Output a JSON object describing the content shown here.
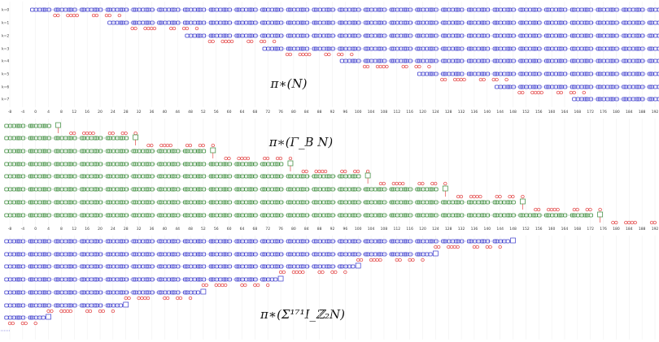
{
  "panels": [
    {
      "label": "π∗(N)",
      "row_labels": [
        "k=0",
        "k=1",
        "k=2",
        "k=3",
        "k=4",
        "k=5",
        "k=6",
        "k=7"
      ]
    },
    {
      "label": "π∗(Γ_B N)"
    },
    {
      "label": "π∗(Σ¹⁷¹I_ℤ₂N)"
    }
  ],
  "axes": [
    {
      "ticks": [
        -8,
        -4,
        0,
        4,
        8,
        12,
        16,
        20,
        24,
        28,
        32,
        36,
        40,
        44,
        48,
        52,
        56,
        60,
        64,
        68,
        72,
        76,
        80,
        84,
        88,
        92,
        96,
        100,
        104,
        108,
        112,
        116,
        120,
        124,
        128,
        132,
        136,
        140,
        144,
        148,
        152,
        156,
        160,
        164,
        168,
        172,
        176,
        180,
        184,
        188,
        192
      ]
    },
    {
      "ticks": [
        -8,
        -4,
        0,
        4,
        8,
        12,
        16,
        20,
        24,
        28,
        32,
        36,
        40,
        44,
        48,
        52,
        56,
        60,
        64,
        68,
        72,
        76,
        80,
        84,
        88,
        92,
        96,
        100,
        104,
        108,
        112,
        116,
        120,
        124,
        128,
        132,
        136,
        140,
        144,
        148,
        152,
        156,
        160,
        164,
        168,
        172,
        176,
        180,
        184,
        188,
        192
      ]
    }
  ]
}
